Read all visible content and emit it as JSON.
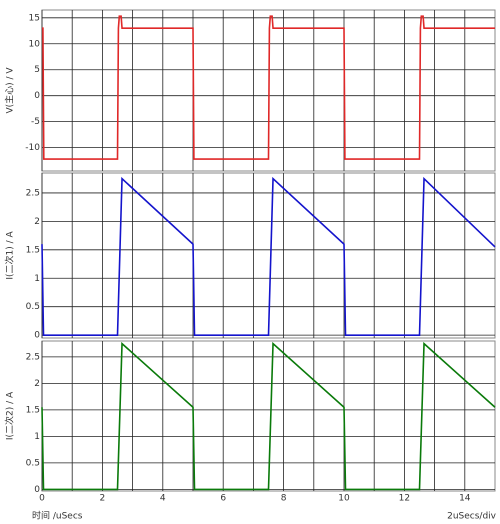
{
  "chart_data": [
    {
      "type": "line",
      "y_label": "V(主心) / V",
      "ylim": [
        -14.5,
        16.5
      ],
      "yticks": [
        -10,
        -5,
        0,
        5,
        10,
        15
      ],
      "grid": true,
      "series": [
        {
          "name": "V(主心)",
          "color": "#e02828",
          "x": [
            0,
            0.03,
            0.06,
            2.5,
            2.53,
            2.56,
            2.62,
            2.65,
            5.0,
            5.03,
            7.5,
            7.53,
            7.56,
            7.62,
            7.65,
            10.0,
            10.03,
            12.5,
            12.53,
            12.56,
            12.62,
            12.65,
            15
          ],
          "values": [
            13,
            13,
            -12.2,
            -12.2,
            13,
            15.3,
            15.3,
            13,
            13,
            -12.2,
            -12.2,
            13,
            15.3,
            15.3,
            13,
            13,
            -12.2,
            -12.2,
            13,
            15.3,
            15.3,
            13,
            13
          ]
        }
      ]
    },
    {
      "type": "line",
      "y_label": "I(二次1) / A",
      "ylim": [
        -0.05,
        2.85
      ],
      "yticks": [
        0,
        0.5,
        1,
        1.5,
        2,
        2.5
      ],
      "grid": true,
      "series": [
        {
          "name": "I(二次1)",
          "color": "#1414cc",
          "x": [
            0,
            0.05,
            2.5,
            2.65,
            5.0,
            5.05,
            7.5,
            7.65,
            10.0,
            10.05,
            12.5,
            12.65,
            15
          ],
          "values": [
            1.6,
            0,
            0,
            2.75,
            1.6,
            0,
            0,
            2.75,
            1.6,
            0,
            0,
            2.75,
            1.55
          ]
        }
      ]
    },
    {
      "type": "line",
      "y_label": "I(二次2) / A",
      "ylim": [
        -0.03,
        2.8
      ],
      "yticks": [
        0,
        0.5,
        1,
        1.5,
        2,
        2.5
      ],
      "grid": true,
      "x_label": "时间 /uSecs",
      "scale_note": "2uSecs/div",
      "xlim": [
        0,
        15
      ],
      "xticks": [
        0,
        2,
        4,
        6,
        8,
        10,
        12,
        14
      ],
      "xminorticks": [
        1,
        3,
        5,
        7,
        9,
        11,
        13
      ],
      "series": [
        {
          "name": "I(二次2)",
          "color": "#0a7a0a",
          "x": [
            0,
            0.05,
            2.5,
            2.65,
            5.0,
            5.05,
            7.5,
            7.65,
            10.0,
            10.05,
            12.5,
            12.65,
            15
          ],
          "values": [
            1.55,
            0,
            0,
            2.75,
            1.55,
            0,
            0,
            2.75,
            1.55,
            0,
            0,
            2.75,
            1.55
          ]
        }
      ]
    }
  ]
}
